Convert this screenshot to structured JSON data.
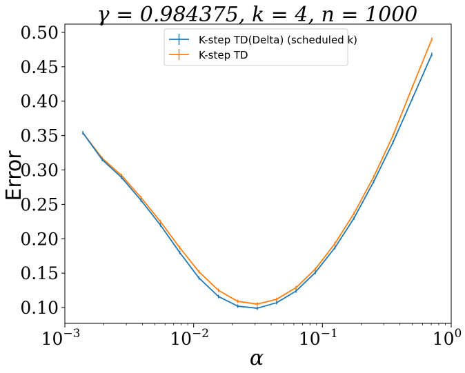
{
  "chart_data": {
    "type": "line",
    "title": "γ = 0.984375, k = 4, n = 1000",
    "xlabel": "α",
    "ylabel": "Error",
    "xscale": "log",
    "xlim": [
      0.001,
      1
    ],
    "ylim": [
      0.077,
      0.512
    ],
    "xticks": [
      {
        "value": 0.001,
        "base": "10",
        "exp": "−3"
      },
      {
        "value": 0.01,
        "base": "10",
        "exp": "−2"
      },
      {
        "value": 0.1,
        "base": "10",
        "exp": "−1"
      },
      {
        "value": 1,
        "base": "10",
        "exp": "0"
      }
    ],
    "yticks": [
      {
        "value": 0.1,
        "label": "0.10"
      },
      {
        "value": 0.15,
        "label": "0.15"
      },
      {
        "value": 0.2,
        "label": "0.20"
      },
      {
        "value": 0.25,
        "label": "0.25"
      },
      {
        "value": 0.3,
        "label": "0.30"
      },
      {
        "value": 0.35,
        "label": "0.35"
      },
      {
        "value": 0.4,
        "label": "0.40"
      },
      {
        "value": 0.45,
        "label": "0.45"
      },
      {
        "value": 0.5,
        "label": "0.50"
      }
    ],
    "legend_position": "top-center",
    "grid": false,
    "x": [
      0.00138,
      0.00195,
      0.00276,
      0.0039,
      0.00552,
      0.0078,
      0.011,
      0.0156,
      0.022,
      0.0312,
      0.0441,
      0.0624,
      0.0882,
      0.125,
      0.176,
      0.25,
      0.353,
      0.5,
      0.707
    ],
    "series": [
      {
        "name": "K-step TD(Delta) (scheduled k)",
        "color": "#1f77b4",
        "values": [
          0.354,
          0.315,
          0.289,
          0.256,
          0.22,
          0.18,
          0.143,
          0.116,
          0.102,
          0.099,
          0.107,
          0.124,
          0.151,
          0.187,
          0.23,
          0.283,
          0.34,
          0.404,
          0.468
        ]
      },
      {
        "name": "K-step TD",
        "color": "#ff7f0e",
        "values": [
          0.354,
          0.317,
          0.292,
          0.26,
          0.225,
          0.187,
          0.152,
          0.125,
          0.109,
          0.105,
          0.112,
          0.129,
          0.156,
          0.193,
          0.237,
          0.29,
          0.35,
          0.421,
          0.49
        ]
      }
    ]
  }
}
